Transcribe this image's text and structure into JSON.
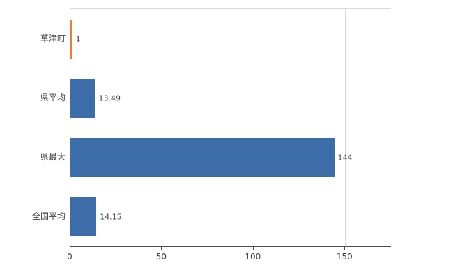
{
  "chart_data": {
    "type": "bar",
    "orientation": "horizontal",
    "title": "",
    "xlabel": "",
    "ylabel": "",
    "categories": [
      "草津町",
      "県平均",
      "県最大",
      "全国平均"
    ],
    "values": [
      1,
      13.49,
      144,
      14.15
    ],
    "value_labels": [
      "1",
      "13.49",
      "144",
      "14.15"
    ],
    "bar_colors": [
      "#ed7d31",
      "#3d6da8",
      "#3d6da8",
      "#3d6da8"
    ],
    "xlim": [
      0,
      175
    ],
    "x_ticks": [
      0,
      50,
      100,
      150
    ],
    "x_tick_labels": [
      "0",
      "50",
      "100",
      "150"
    ],
    "grid": true,
    "legend": false
  },
  "colors": {
    "bar_blue": "#3d6da8",
    "bar_orange": "#ed7d31",
    "gridline": "#d9d9d9",
    "axis": "#4d4d4d",
    "text": "#404040",
    "background": "#ffffff"
  }
}
